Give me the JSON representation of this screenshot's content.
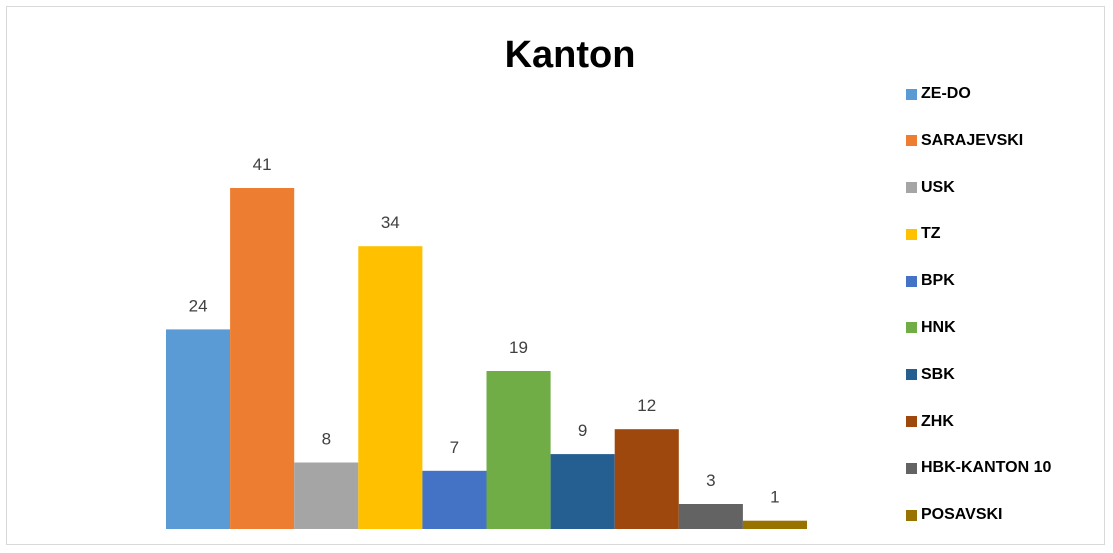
{
  "chart_data": {
    "type": "bar",
    "title": "Kanton",
    "xlabel": "",
    "ylabel": "",
    "ylim": [
      0,
      41
    ],
    "grid": false,
    "legend_position": "right",
    "categories": [
      "ZE-DO",
      "SARAJEVSKI",
      "USK",
      "TZ",
      "BPK",
      "HNK",
      "SBK",
      "ZHK",
      "HBK-KANTON 10",
      "POSAVSKI"
    ],
    "values": [
      24,
      41,
      8,
      34,
      7,
      19,
      9,
      12,
      3,
      1
    ],
    "colors": [
      "#5b9bd5",
      "#ed7d31",
      "#a5a5a5",
      "#ffc000",
      "#4472c4",
      "#70ad47",
      "#255e91",
      "#9e480e",
      "#636363",
      "#997300"
    ],
    "data_labels": [
      "24",
      "41",
      "8",
      "34",
      "7",
      "19",
      "9",
      "12",
      "3",
      "1"
    ]
  }
}
